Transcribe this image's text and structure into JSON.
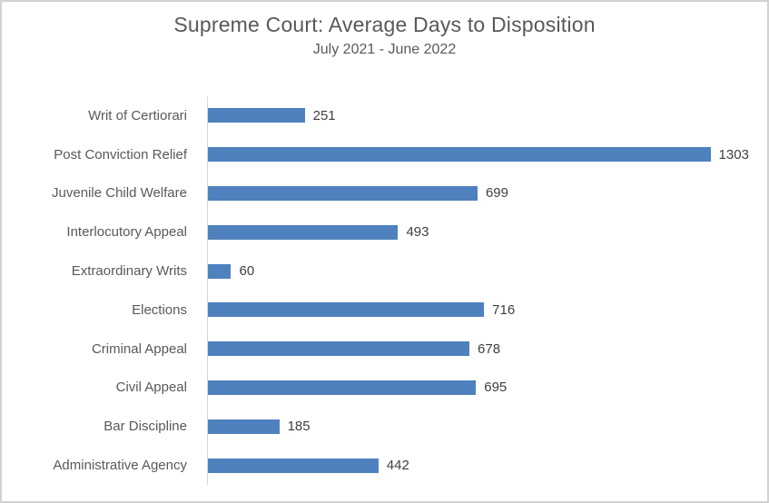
{
  "window": {
    "background": "#ffffff",
    "border_color": "#d2d2d2"
  },
  "chart_data": {
    "type": "bar",
    "orientation": "horizontal",
    "title": "Supreme Court: Average Days to Disposition",
    "subtitle": "July 2021 - June 2022",
    "categories": [
      "Writ of Certiorari",
      "Post Conviction Relief",
      "Juvenile Child Welfare",
      "Interlocutory Appeal",
      "Extraordinary Writs",
      "Elections",
      "Criminal Appeal",
      "Civil Appeal",
      "Bar Discipline",
      "Administrative Agency"
    ],
    "values": [
      251,
      1303,
      699,
      493,
      60,
      716,
      678,
      695,
      185,
      442
    ],
    "xlabel": "",
    "ylabel": "",
    "xlim": [
      0,
      1450
    ],
    "grid": false,
    "legend": false,
    "data_labels": "end-of-bar",
    "bar_color": "#4e81bd",
    "category_label_color": "#595959",
    "value_label_color": "#3f3f3f",
    "axis_line_color": "#d9d9d9",
    "title_color": "#595959"
  }
}
